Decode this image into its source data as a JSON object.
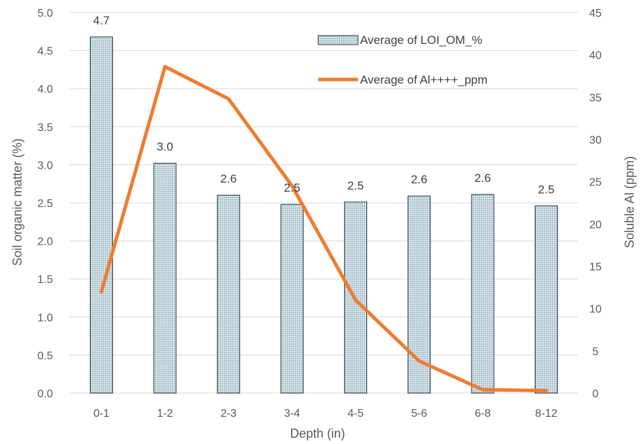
{
  "chart_data": {
    "type": "bar",
    "categories": [
      "0-1",
      "1-2",
      "2-3",
      "3-4",
      "4-5",
      "5-6",
      "6-8",
      "8-12"
    ],
    "series": [
      {
        "name": "Average of LOI_OM_%",
        "type": "bar",
        "axis": "left",
        "values": [
          4.68,
          3.02,
          2.6,
          2.48,
          2.51,
          2.59,
          2.61,
          2.46
        ],
        "labels": [
          "4.7",
          "3.0",
          "2.6",
          "2.5",
          "2.5",
          "2.6",
          "2.6",
          "2.5"
        ]
      },
      {
        "name": "Average of Al++++_ppm",
        "type": "line",
        "axis": "right",
        "values": [
          12.0,
          38.6,
          34.8,
          24.5,
          11.0,
          3.8,
          0.4,
          0.3
        ]
      }
    ],
    "xlabel": "Depth (in)",
    "ylabel": "Soil organic matter (%)",
    "y2label": "Soluble Al (ppm)",
    "ylim": [
      0,
      5
    ],
    "y2lim": [
      0,
      45
    ],
    "yticks": [
      "0.0",
      "0.5",
      "1.0",
      "1.5",
      "2.0",
      "2.5",
      "3.0",
      "3.5",
      "4.0",
      "4.5",
      "5.0"
    ],
    "y2ticks": [
      "0",
      "5",
      "10",
      "15",
      "20",
      "25",
      "30",
      "35",
      "40",
      "45"
    ],
    "grid": true,
    "legend_position": "top-right",
    "colors": {
      "bar_fill": "#d6e4ea",
      "bar_dots": "#6f8fa0",
      "bar_stroke": "#1f2d3a",
      "line": "#ed7d31",
      "grid": "#d9d9d9"
    }
  }
}
